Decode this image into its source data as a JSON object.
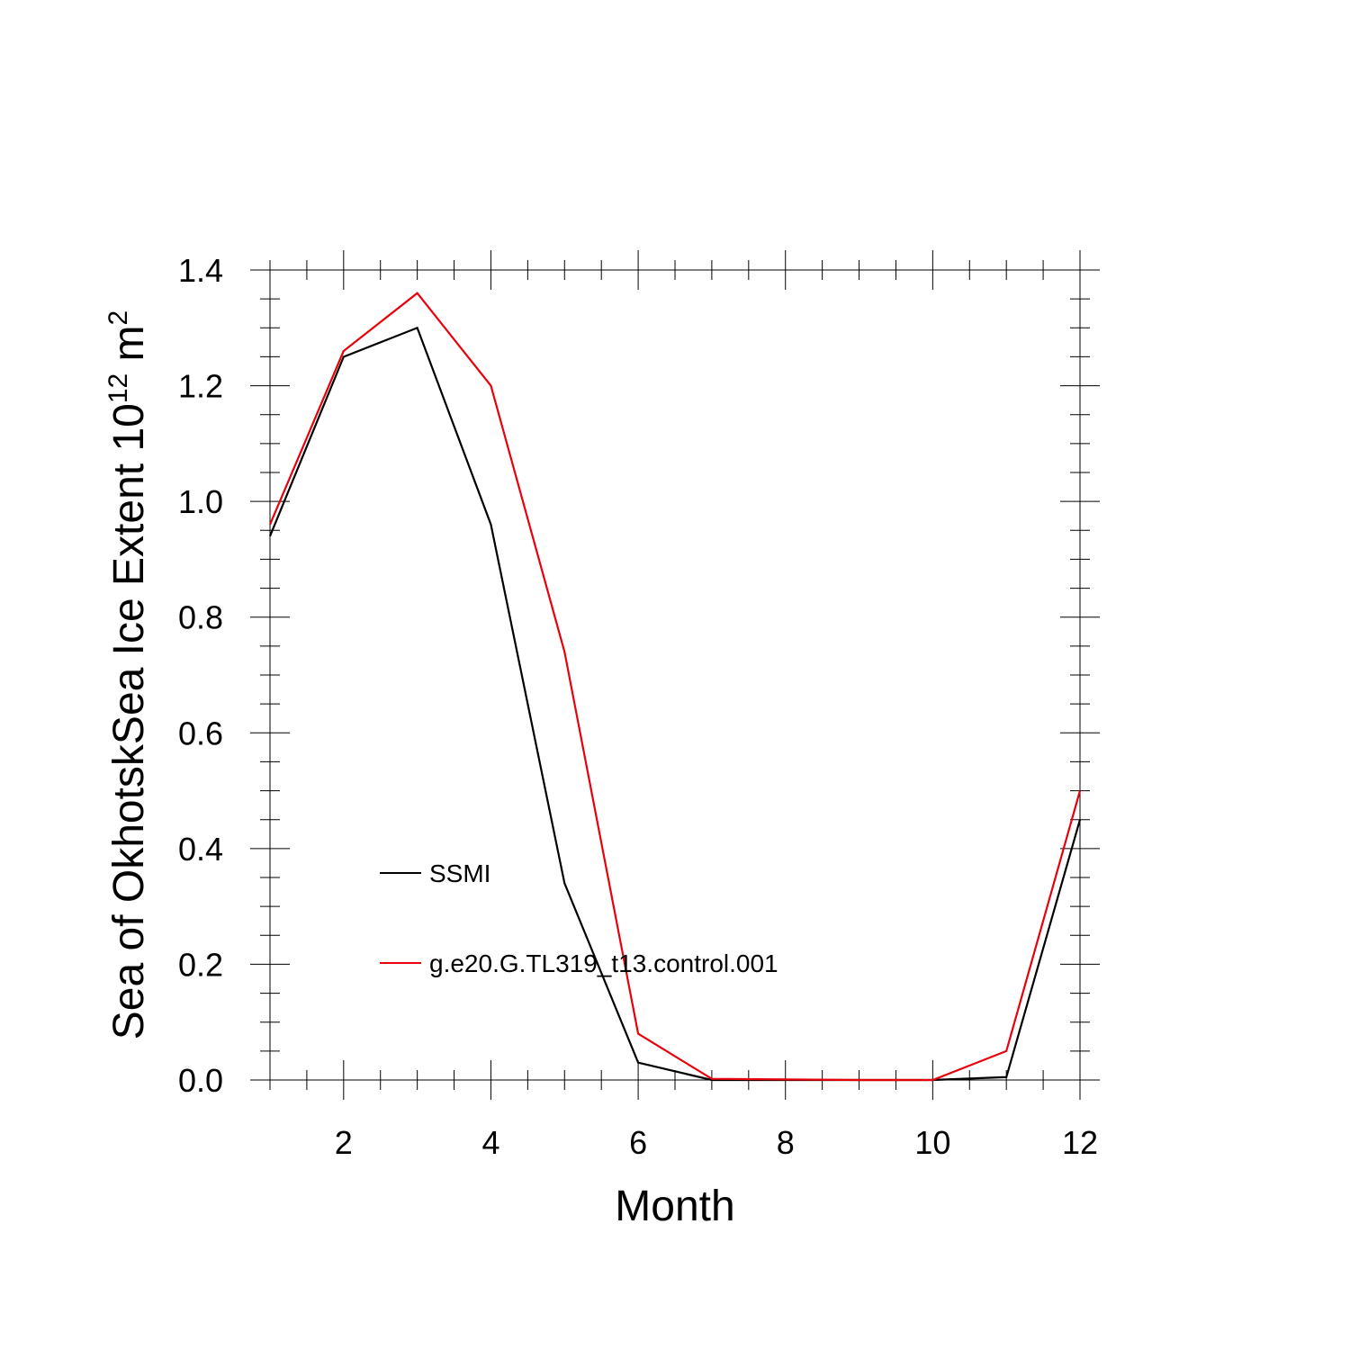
{
  "chart_data": {
    "type": "line",
    "x": [
      1,
      2,
      3,
      4,
      5,
      6,
      7,
      8,
      9,
      10,
      11,
      12
    ],
    "series": [
      {
        "name": "SSMI",
        "color": "#000000",
        "values": [
          0.94,
          1.25,
          1.3,
          0.96,
          0.34,
          0.03,
          0.0,
          0.0,
          0.0,
          0.0,
          0.005,
          0.45
        ]
      },
      {
        "name": "g.e20.G.TL319_t13.control.001",
        "color": "#e8000b",
        "values": [
          0.96,
          1.26,
          1.36,
          1.2,
          0.74,
          0.08,
          0.002,
          0.001,
          0.0,
          0.0,
          0.05,
          0.5
        ]
      }
    ],
    "xlabel": "Month",
    "ylabel": {
      "main": "Sea of OkhotskSea Ice Extent 10",
      "superscript": "12",
      "unit": " m",
      "unit_superscript": "2"
    },
    "xlim": [
      1,
      12
    ],
    "ylim": [
      0,
      1.4
    ],
    "x_ticks": [
      2,
      4,
      6,
      8,
      10,
      12
    ],
    "x_tick_labels": [
      "2",
      "4",
      "6",
      "8",
      "10",
      "12"
    ],
    "y_ticks": [
      0,
      0.2,
      0.4,
      0.6,
      0.8,
      1.0,
      1.2,
      1.4
    ],
    "y_tick_labels": [
      "0.0",
      "0.2",
      "0.4",
      "0.6",
      "0.8",
      "1.0",
      "1.2",
      "1.4"
    ],
    "grid": false,
    "legend_placement": "lower-left inside"
  }
}
